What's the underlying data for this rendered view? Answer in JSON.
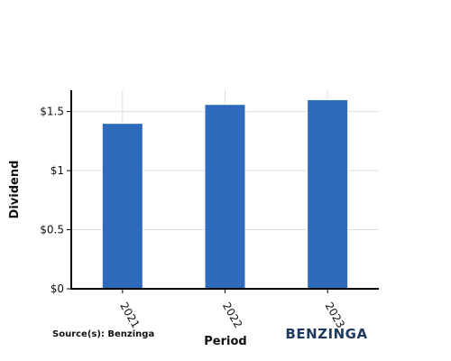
{
  "chart_data": {
    "type": "bar",
    "categories": [
      "2021",
      "2022",
      "2023"
    ],
    "values": [
      1.4,
      1.56,
      1.6
    ],
    "title": "",
    "xlabel": "Period",
    "ylabel": "Dividend",
    "ylim": [
      0,
      1.68
    ],
    "yticks": [
      0,
      0.5,
      1,
      1.5
    ],
    "ytick_labels": [
      "$0",
      "$0.5",
      "$1",
      "$1.5"
    ],
    "grid": true,
    "bar_color": "#2f6bbd",
    "grid_color": "#dddddd"
  },
  "source": "Source(s): Benzinga",
  "logo_text": "BENZINGA"
}
